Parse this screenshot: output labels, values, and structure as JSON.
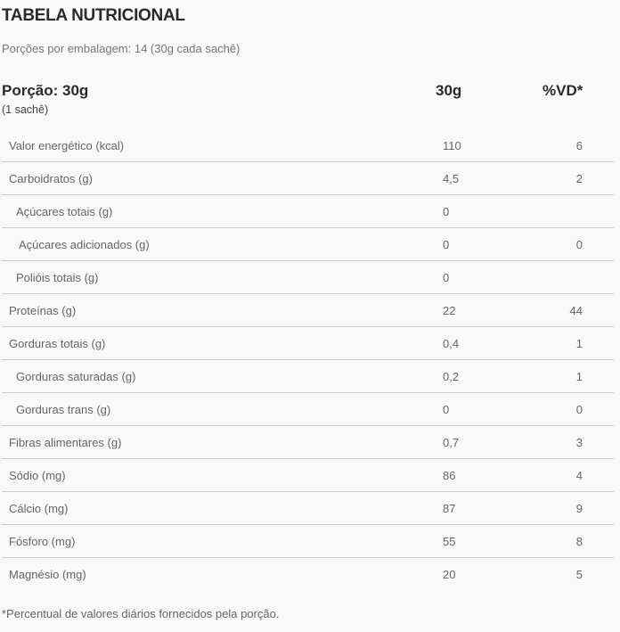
{
  "title": "TABELA NUTRICIONAL",
  "portions_per_package": "Porções por embalagem: 14 (30g cada sachê)",
  "header": {
    "portion": "Porção: 30g",
    "portion_sub": "(1 sachê)",
    "col_amount": "30g",
    "col_vd": "%VD*"
  },
  "rows": [
    {
      "label": "Valor energético (kcal)",
      "amount": "110",
      "vd": "6",
      "level": 0
    },
    {
      "label": "Carboidratos (g)",
      "amount": "4,5",
      "vd": "2",
      "level": 0
    },
    {
      "label": "Açúcares totais (g)",
      "amount": "0",
      "vd": "",
      "level": 1
    },
    {
      "label": "Açúcares adicionados (g)",
      "amount": "0",
      "vd": "0",
      "level": 2
    },
    {
      "label": "Polióis totais (g)",
      "amount": "0",
      "vd": "",
      "level": 1
    },
    {
      "label": "Proteínas (g)",
      "amount": "22",
      "vd": "44",
      "level": 0
    },
    {
      "label": "Gorduras totais (g)",
      "amount": "0,4",
      "vd": "1",
      "level": 0
    },
    {
      "label": "Gorduras saturadas (g)",
      "amount": "0,2",
      "vd": "1",
      "level": 1
    },
    {
      "label": "Gorduras trans (g)",
      "amount": "0",
      "vd": "0",
      "level": 1
    },
    {
      "label": "Fibras alimentares (g)",
      "amount": "0,7",
      "vd": "3",
      "level": 0
    },
    {
      "label": "Sódio (mg)",
      "amount": "86",
      "vd": "4",
      "level": 0
    },
    {
      "label": "Cálcio (mg)",
      "amount": "87",
      "vd": "9",
      "level": 0
    },
    {
      "label": "Fósforo (mg)",
      "amount": "55",
      "vd": "8",
      "level": 0
    },
    {
      "label": "Magnésio (mg)",
      "amount": "20",
      "vd": "5",
      "level": 0
    }
  ],
  "footnote": "*Percentual de valores diários fornecidos pela porção."
}
